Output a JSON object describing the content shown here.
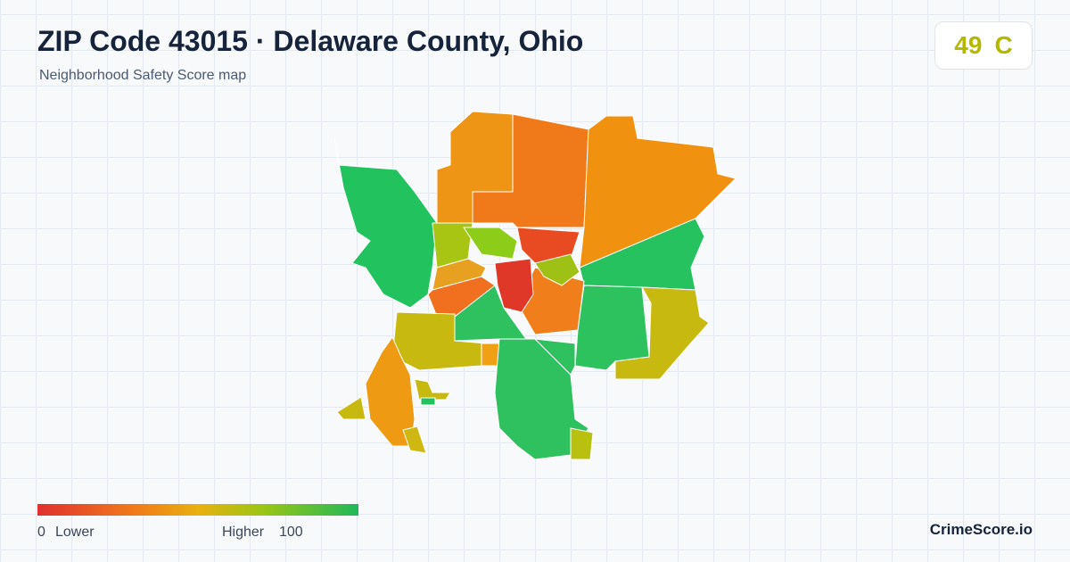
{
  "header": {
    "title": "ZIP Code 43015 · Delaware County, Ohio",
    "subtitle": "Neighborhood Safety Score map"
  },
  "score": {
    "value": 49,
    "grade": "C"
  },
  "legend": {
    "min": 0,
    "min_label": "Lower",
    "max_label": "Higher",
    "max": 100
  },
  "brand": "CrimeScore.io"
}
